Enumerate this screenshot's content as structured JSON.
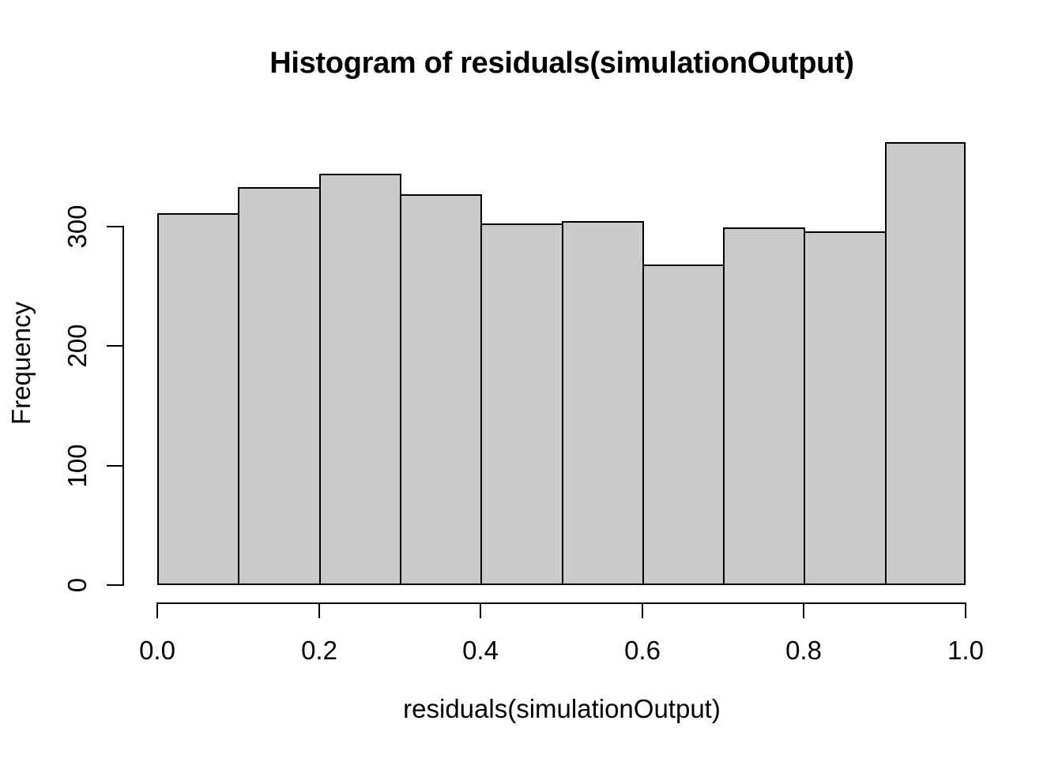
{
  "chart_data": {
    "type": "bar",
    "chart_kind": "histogram",
    "title": "Histogram of residuals(simulationOutput)",
    "xlabel": "residuals(simulationOutput)",
    "ylabel": "Frequency",
    "categories": [
      "0.0-0.1",
      "0.1-0.2",
      "0.2-0.3",
      "0.3-0.4",
      "0.4-0.5",
      "0.5-0.6",
      "0.6-0.7",
      "0.7-0.8",
      "0.8-0.9",
      "0.9-1.0"
    ],
    "values": [
      311,
      333,
      344,
      327,
      302,
      304,
      268,
      299,
      296,
      370
    ],
    "bin_width": 0.1,
    "x_ticks": [
      "0.0",
      "0.2",
      "0.4",
      "0.6",
      "0.8",
      "1.0"
    ],
    "y_ticks": [
      "0",
      "100",
      "200",
      "300"
    ],
    "xlim": [
      0.0,
      1.0
    ],
    "ylim": [
      0,
      300
    ],
    "grid": false,
    "legend": false,
    "colors": {
      "bar_fill": "#cacaca",
      "bar_border": "#000000",
      "axis": "#000000",
      "text": "#000000",
      "background": "#ffffff"
    }
  }
}
